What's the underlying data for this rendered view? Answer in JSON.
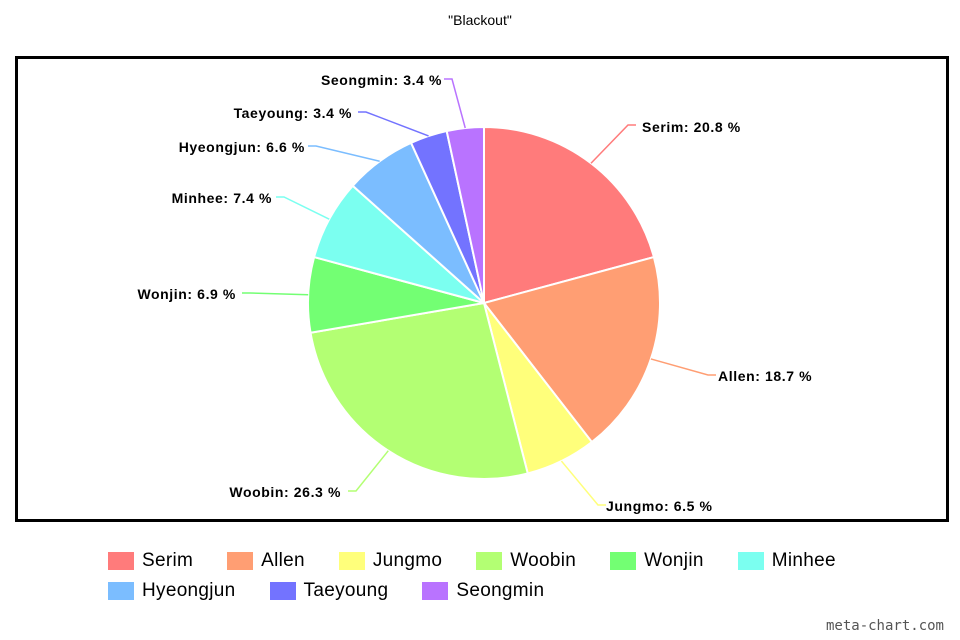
{
  "chart_data": {
    "type": "pie",
    "title": "\"Blackout\"",
    "slices": [
      {
        "name": "Serim",
        "value": 20.8,
        "label": "Serim: 20.8 %",
        "color": "#ff7b7b"
      },
      {
        "name": "Allen",
        "value": 18.7,
        "label": "Allen: 18.7 %",
        "color": "#ff9e73"
      },
      {
        "name": "Jungmo",
        "value": 6.5,
        "label": "Jungmo: 6.5 %",
        "color": "#ffff7b"
      },
      {
        "name": "Woobin",
        "value": 26.3,
        "label": "Woobin: 26.3 %",
        "color": "#b3ff73"
      },
      {
        "name": "Wonjin",
        "value": 6.9,
        "label": "Wonjin: 6.9 %",
        "color": "#73ff73"
      },
      {
        "name": "Minhee",
        "value": 7.4,
        "label": "Minhee: 7.4 %",
        "color": "#7bfff0"
      },
      {
        "name": "Hyeongjun",
        "value": 6.6,
        "label": "Hyeongjun: 6.6 %",
        "color": "#7bbdff"
      },
      {
        "name": "Taeyoung",
        "value": 3.4,
        "label": "Taeyoung: 3.4 %",
        "color": "#7373ff"
      },
      {
        "name": "Seongmin",
        "value": 3.4,
        "label": "Seongmin: 3.4 %",
        "color": "#b973ff"
      }
    ],
    "legend_position": "bottom"
  },
  "legend_rows": [
    [
      "Serim",
      "Allen",
      "Jungmo",
      "Woobin",
      "Wonjin",
      "Minhee"
    ],
    [
      "Hyeongjun",
      "Taeyoung",
      "Seongmin"
    ]
  ],
  "watermark": "meta-chart.com"
}
